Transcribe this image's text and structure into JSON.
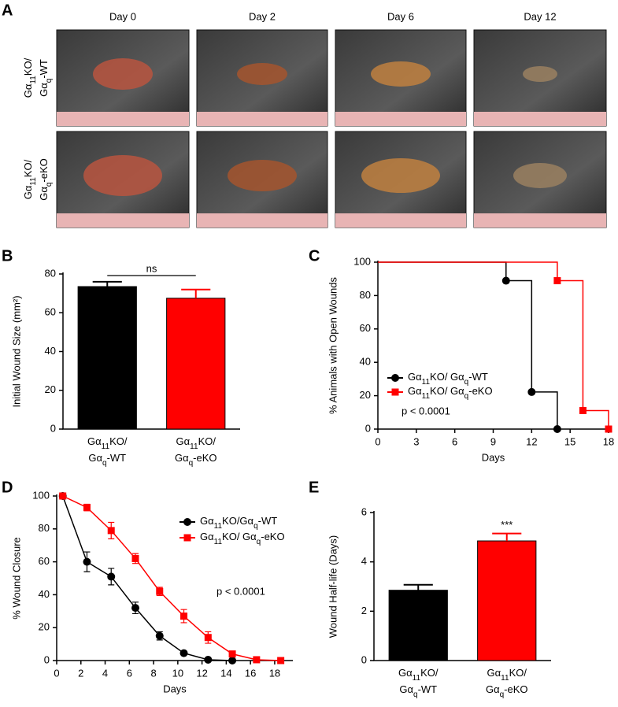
{
  "panel_a": {
    "label": "A",
    "columns": [
      "Day 0",
      "Day 2",
      "Day 6",
      "Day 12"
    ],
    "rows": [
      [
        [
          "Gα",
          "11",
          "KO/"
        ],
        [
          "Gα",
          "q",
          "-WT"
        ]
      ],
      [
        [
          "Gα",
          "11",
          "KO/"
        ],
        [
          "Gα",
          "q",
          "-eKO"
        ]
      ]
    ]
  },
  "chart_data": [
    {
      "type": "bar",
      "panel": "B",
      "y_label": "Initial Wound Size (mm²)",
      "categories": [
        [
          [
            "Gα",
            "11",
            "KO/"
          ],
          [
            "Gα",
            "q",
            "-WT"
          ]
        ],
        [
          [
            "Gα",
            "11",
            "KO/"
          ],
          [
            "Gα",
            "q",
            "-eKO"
          ]
        ]
      ],
      "values": [
        73.5,
        67.5
      ],
      "errors": [
        2.5,
        4.5
      ],
      "colors": [
        "#000000",
        "#ff0000"
      ],
      "annotation": "ns",
      "ylim": [
        0,
        80
      ],
      "yticks": [
        0,
        20,
        40,
        60,
        80
      ]
    },
    {
      "type": "step",
      "panel": "C",
      "y_label": "% Animals with Open Wounds",
      "x_label": "Days",
      "series": [
        {
          "name": [
            [
              "Gα",
              "11",
              "KO/ Gα",
              "q",
              "-WT"
            ]
          ],
          "color": "#000000",
          "marker": "circle",
          "x": [
            0,
            10,
            12,
            14
          ],
          "values": [
            100,
            88.9,
            22.2,
            0
          ]
        },
        {
          "name": [
            [
              "Gα",
              "11",
              "KO/ Gα",
              "q",
              "-eKO"
            ]
          ],
          "color": "#ff0000",
          "marker": "square",
          "x": [
            0,
            14,
            16,
            18
          ],
          "values": [
            100,
            88.9,
            11.1,
            0
          ]
        }
      ],
      "annotation": "p < 0.0001",
      "xlim": [
        0,
        18
      ],
      "xticks": [
        0,
        3,
        6,
        9,
        12,
        15,
        18
      ],
      "ylim": [
        0,
        100
      ],
      "yticks": [
        0,
        20,
        40,
        60,
        80,
        100
      ]
    },
    {
      "type": "line",
      "panel": "D",
      "y_label": "% Wound Closure",
      "x_label": "Days",
      "series": [
        {
          "name": [
            [
              "Gα",
              "11",
              "KO/Gα",
              "q",
              "-WT"
            ]
          ],
          "color": "#000000",
          "marker": "circle",
          "x": [
            0.5,
            2.5,
            4.5,
            6.5,
            8.5,
            10.5,
            12.5,
            14.5
          ],
          "values": [
            100,
            60,
            51,
            32,
            15,
            4.5,
            0.5,
            0
          ],
          "errors": [
            0,
            6,
            5,
            3.5,
            2.5,
            1,
            0,
            0
          ]
        },
        {
          "name": [
            [
              "Gα",
              "11",
              "KO/ Gα",
              "q",
              "-eKO"
            ]
          ],
          "color": "#ff0000",
          "marker": "square",
          "x": [
            0.5,
            2.5,
            4.5,
            6.5,
            8.5,
            10.5,
            12.5,
            14.5,
            16.5,
            18.5
          ],
          "values": [
            100,
            93,
            79,
            62,
            42,
            27,
            14,
            4,
            0.5,
            0
          ],
          "errors": [
            0,
            2,
            5,
            3,
            2.5,
            4,
            3.5,
            1.5,
            0,
            0
          ]
        }
      ],
      "annotation": "p < 0.0001",
      "xlim": [
        0,
        19.5
      ],
      "xticks": [
        0,
        2,
        4,
        6,
        8,
        10,
        12,
        14,
        16,
        18
      ],
      "ylim": [
        0,
        100
      ],
      "yticks": [
        0,
        20,
        40,
        60,
        80,
        100
      ]
    },
    {
      "type": "bar",
      "panel": "E",
      "y_label": "Wound Half-life (Days)",
      "categories": [
        [
          [
            "Gα",
            "11",
            "KO/"
          ],
          [
            "Gα",
            "q",
            "-WT"
          ]
        ],
        [
          [
            "Gα",
            "11",
            "KO/"
          ],
          [
            "Gα",
            "q",
            "-eKO"
          ]
        ]
      ],
      "values": [
        2.85,
        4.85
      ],
      "errors": [
        0.22,
        0.3
      ],
      "colors": [
        "#000000",
        "#ff0000"
      ],
      "annotation": "***",
      "ylim": [
        0,
        6
      ],
      "yticks": [
        0,
        2,
        4,
        6
      ]
    }
  ]
}
